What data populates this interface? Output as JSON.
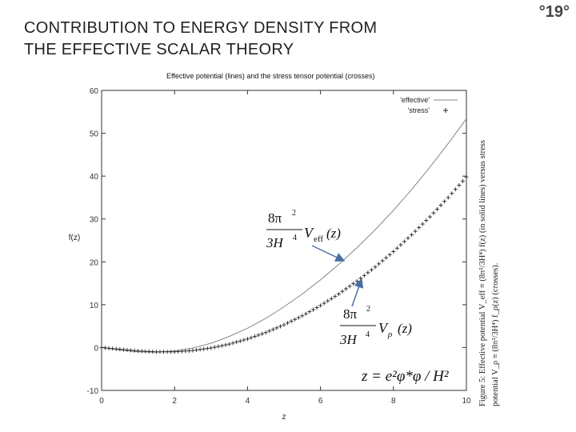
{
  "slide": {
    "title_line1": "CONTRIBUTION TO ENERGY DENSITY FROM",
    "title_line2": "THE EFFECTIVE SCALAR THEORY",
    "number": "°19°"
  },
  "caption": {
    "line1": "Figure 5:  Effective potential V_eff ≡ (8π²/3H⁴) f(z) (in solid lines) versus stress",
    "line2": "potential V_ρ ≡ (8π²/3H⁴) f_ρ(z) (crosses)."
  },
  "formulas": {
    "veff": {
      "num": "8π",
      "sup": "2",
      "den": "3H",
      "den_sup": "4",
      "var": "V",
      "sub": "eff",
      "arg": "(z)"
    },
    "vrho": {
      "num": "8π",
      "sup": "2",
      "den": "3H",
      "den_sup": "4",
      "var": "V",
      "sub": "ρ",
      "arg": "(z)"
    },
    "zdef": "z = e²φ*φ / H²"
  },
  "chart_data": {
    "type": "line",
    "title": "Effective potential (lines) and the stress tensor potential  (crosses)",
    "xlabel": "z",
    "ylabel": "f(z)",
    "xlim": [
      0,
      10
    ],
    "ylim": [
      -10,
      60
    ],
    "xticks": [
      "0",
      "2",
      "4",
      "6",
      "8",
      "10"
    ],
    "yticks": [
      "-10",
      "0",
      "10",
      "20",
      "30",
      "40",
      "50",
      "60"
    ],
    "grid": false,
    "legend_position": "top-right",
    "series": [
      {
        "name": "'effective'",
        "style": "line",
        "color": "#888888",
        "x": [
          0,
          0.5,
          1,
          1.5,
          2,
          2.5,
          3,
          3.5,
          4,
          4.5,
          5,
          5.5,
          6,
          6.5,
          7,
          7.5,
          8,
          8.5,
          9,
          9.5,
          10
        ],
        "y": [
          0,
          -0.6,
          -1.0,
          -1.1,
          -0.8,
          -0.1,
          1.0,
          2.6,
          4.5,
          6.8,
          9.5,
          12.5,
          15.8,
          19.4,
          23.3,
          27.5,
          32.0,
          36.9,
          42.1,
          47.6,
          53.4
        ]
      },
      {
        "name": "'stress'",
        "style": "crosses",
        "color": "#222222",
        "x": [
          0,
          0.5,
          1,
          1.5,
          2,
          2.5,
          3,
          3.5,
          4,
          4.5,
          5,
          5.5,
          6,
          6.5,
          7,
          7.5,
          8,
          8.5,
          9,
          9.5,
          10
        ],
        "y": [
          0,
          -0.4,
          -0.8,
          -1.0,
          -1.0,
          -0.7,
          -0.1,
          0.8,
          2.0,
          3.5,
          5.3,
          7.4,
          9.8,
          12.5,
          15.5,
          18.8,
          22.4,
          26.3,
          30.5,
          35.0,
          39.8
        ]
      }
    ]
  }
}
